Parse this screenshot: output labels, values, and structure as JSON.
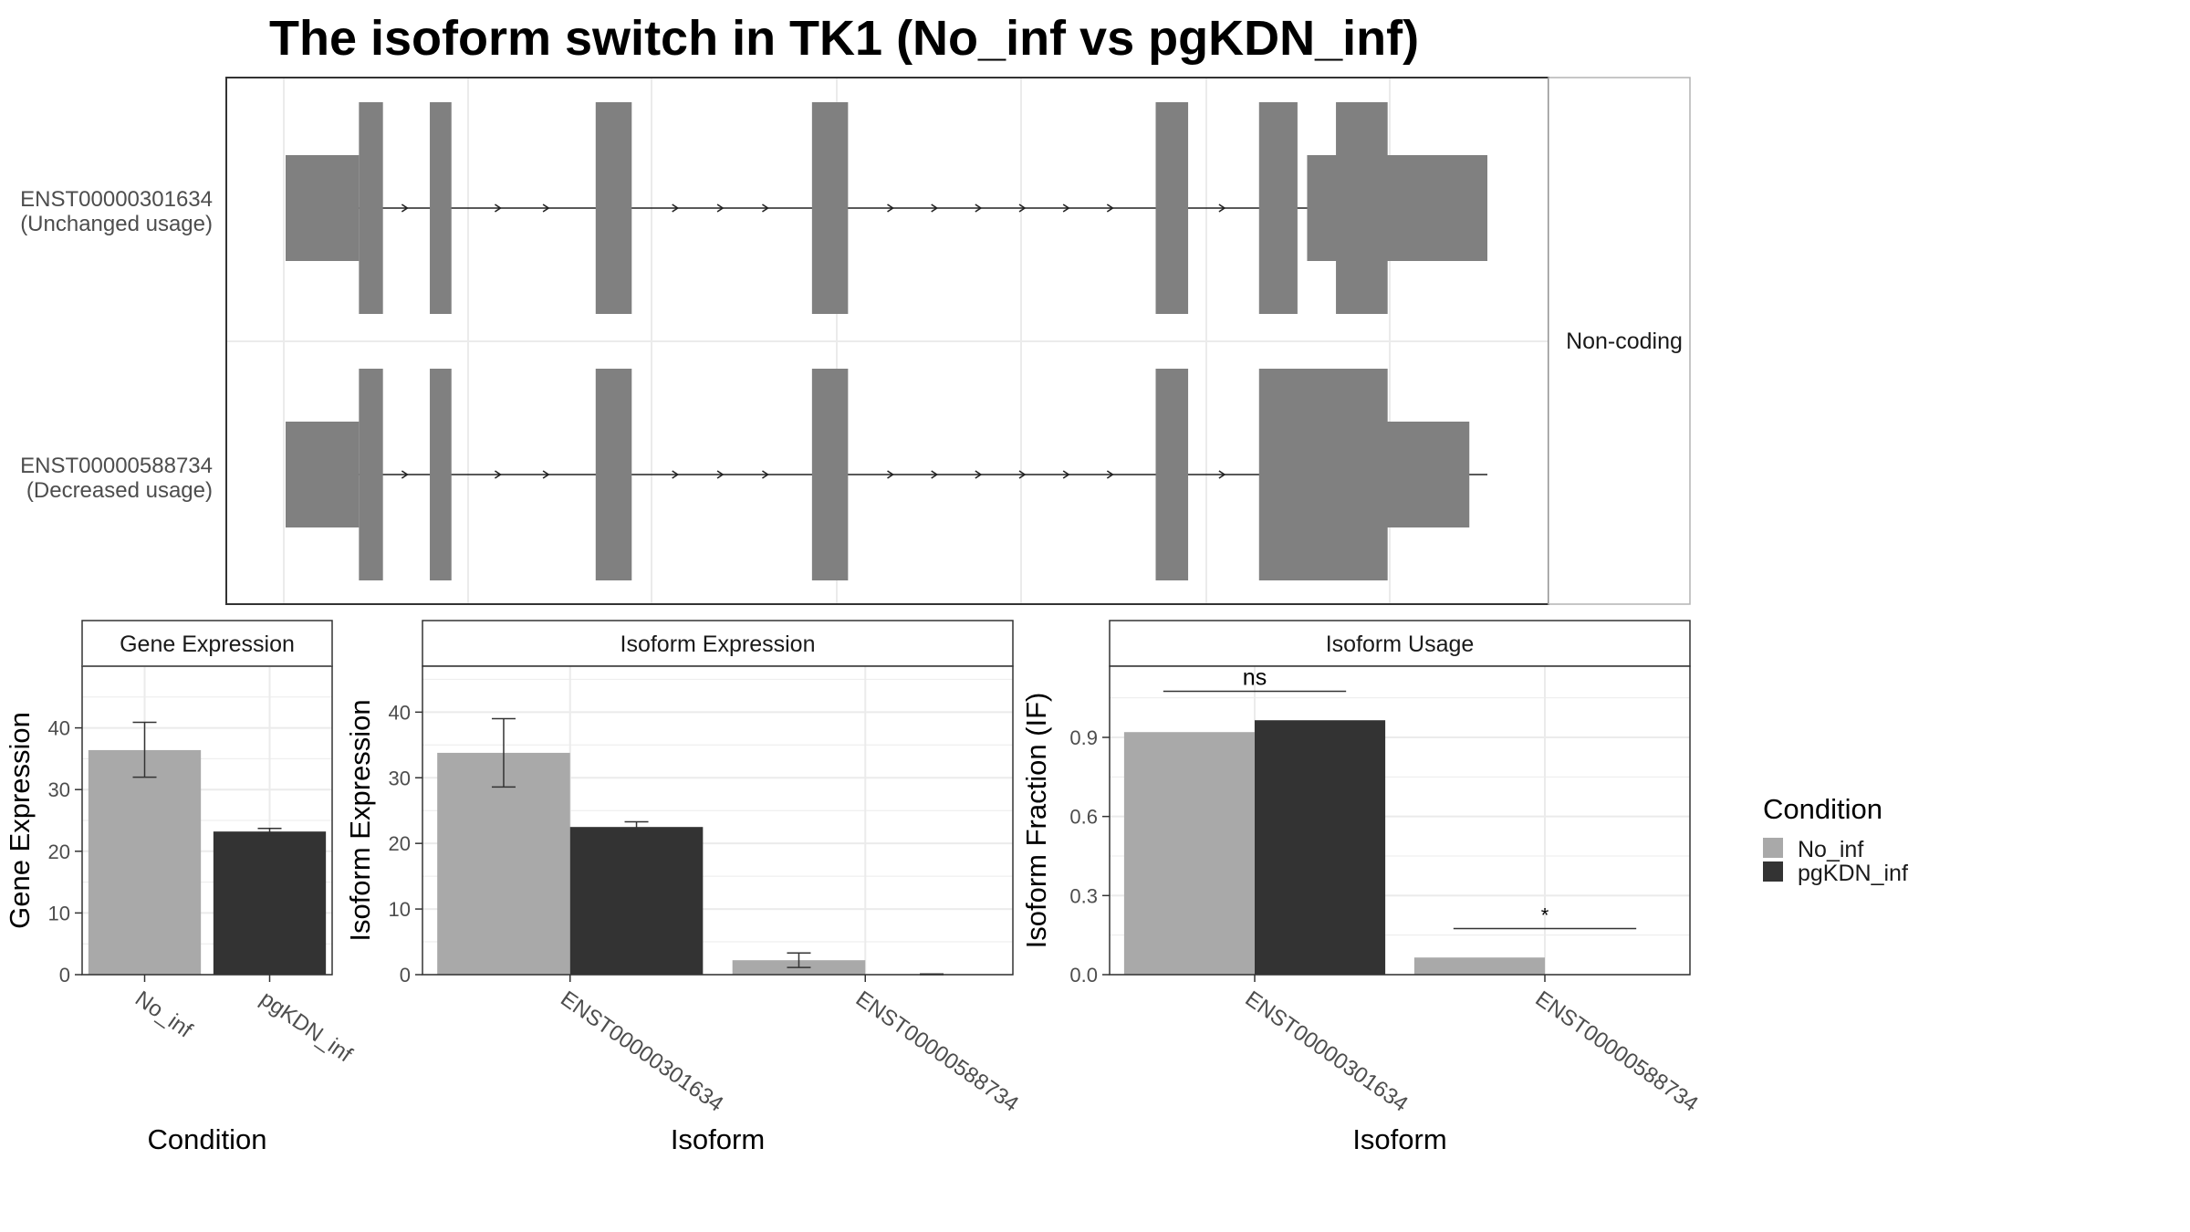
{
  "title": "The isoform switch in TK1 (No_inf vs pgKDN_inf)",
  "structure_panel": {
    "strip_label": "Non-coding",
    "transcripts": [
      {
        "id": "ENST00000301634",
        "usage": "(Unchanged usage)",
        "utr_blocks": [
          [
            0.0,
            0.061
          ],
          [
            0.85,
            1.0
          ]
        ],
        "cds_blocks": [
          [
            0.061,
            0.081
          ],
          [
            0.12,
            0.138
          ],
          [
            0.258,
            0.288
          ],
          [
            0.438,
            0.468
          ],
          [
            0.724,
            0.751
          ],
          [
            0.81,
            0.842
          ],
          [
            0.874,
            0.917
          ]
        ]
      },
      {
        "id": "ENST00000588734",
        "usage": "(Decreased usage)",
        "utr_blocks": [
          [
            0.0,
            0.061
          ],
          [
            0.85,
            0.985
          ]
        ],
        "cds_blocks": [
          [
            0.061,
            0.081
          ],
          [
            0.12,
            0.138
          ],
          [
            0.258,
            0.288
          ],
          [
            0.438,
            0.468
          ],
          [
            0.724,
            0.751
          ],
          [
            0.81,
            0.917
          ]
        ]
      }
    ]
  },
  "chart_data": [
    {
      "type": "bar",
      "strip": "Gene Expression",
      "xlabel": "Condition",
      "ylabel": "Gene Expression",
      "categories": [
        "No_inf",
        "pgKDN_inf"
      ],
      "values": [
        36.4,
        23.2
      ],
      "errors": [
        [
          32.0,
          40.9
        ],
        [
          22.7,
          23.7
        ]
      ],
      "colors": [
        "#a9a9a9",
        "#333333"
      ],
      "ylim": [
        0,
        50
      ],
      "yticks": [
        0,
        10,
        20,
        30,
        40
      ]
    },
    {
      "type": "bar",
      "strip": "Isoform Expression",
      "xlabel": "Isoform",
      "ylabel": "Isoform Expression",
      "categories": [
        "ENST00000301634",
        "ENST00000588734"
      ],
      "series": [
        {
          "name": "No_inf",
          "values": [
            33.8,
            2.2
          ],
          "errors": [
            [
              28.6,
              39.0
            ],
            [
              1.1,
              3.3
            ]
          ]
        },
        {
          "name": "pgKDN_inf",
          "values": [
            22.5,
            0.05
          ],
          "errors": [
            [
              21.8,
              23.3
            ],
            [
              0.0,
              0.1
            ]
          ]
        }
      ],
      "ylim": [
        0,
        47
      ],
      "yticks": [
        0,
        10,
        20,
        30,
        40
      ]
    },
    {
      "type": "bar",
      "strip": "Isoform Usage",
      "xlabel": "Isoform",
      "ylabel": "Isoform Fraction (IF)",
      "categories": [
        "ENST00000301634",
        "ENST00000588734"
      ],
      "series": [
        {
          "name": "No_inf",
          "values": [
            0.92,
            0.065
          ]
        },
        {
          "name": "pgKDN_inf",
          "values": [
            0.965,
            0.0
          ]
        }
      ],
      "significance": [
        "ns",
        "*"
      ],
      "ylim": [
        0,
        1.17
      ],
      "yticks": [
        "0.0",
        "0.3",
        "0.6",
        "0.9"
      ]
    }
  ],
  "legend": {
    "title": "Condition",
    "items": [
      {
        "label": "No_inf",
        "color": "#a9a9a9"
      },
      {
        "label": "pgKDN_inf",
        "color": "#333333"
      }
    ]
  }
}
